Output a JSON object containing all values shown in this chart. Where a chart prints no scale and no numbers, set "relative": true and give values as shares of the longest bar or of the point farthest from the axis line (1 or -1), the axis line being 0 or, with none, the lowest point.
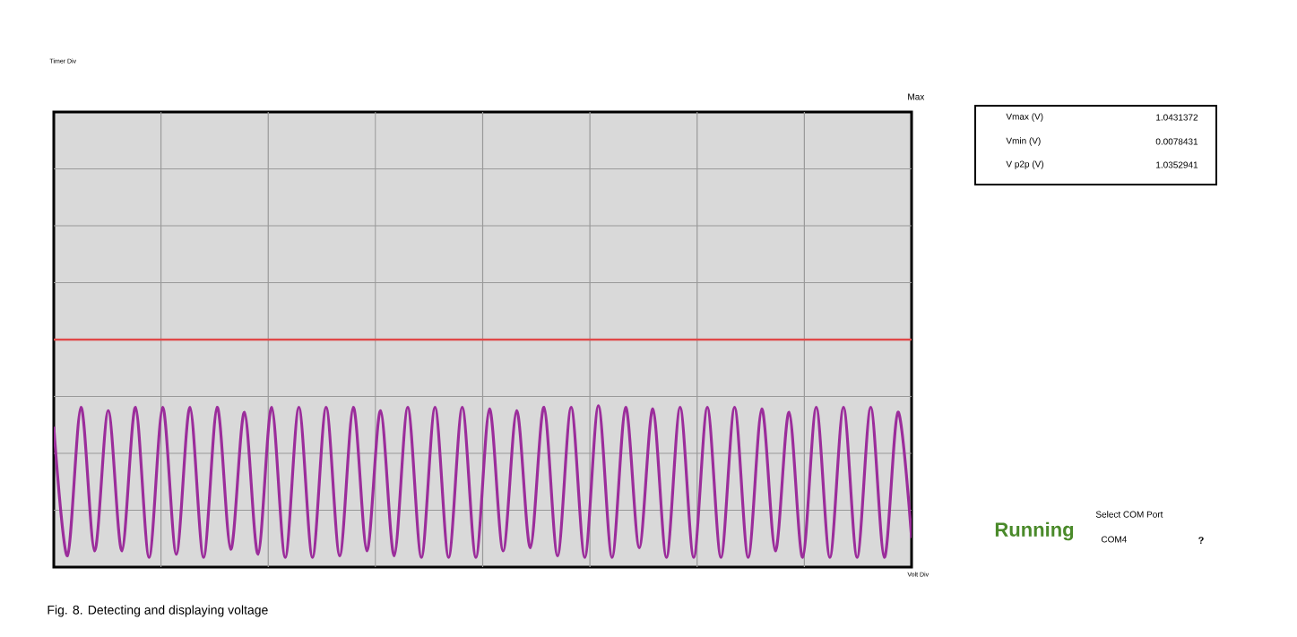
{
  "chart_data": {
    "type": "line",
    "relative": true,
    "marker": "none",
    "grid": true,
    "categories": [
      null,
      null,
      null,
      null,
      null,
      null,
      null,
      null,
      null,
      null,
      null,
      null,
      null,
      null,
      null,
      null,
      null,
      null,
      null,
      null,
      null,
      null,
      null,
      null,
      null,
      null,
      null,
      null,
      null,
      null,
      null,
      null,
      null,
      null,
      null,
      null,
      null,
      null,
      null,
      null,
      null,
      null,
      null,
      null,
      null,
      null,
      null,
      null,
      null,
      null,
      null,
      null,
      null,
      null,
      null,
      null,
      null,
      null,
      null,
      null,
      null,
      null,
      null,
      null
    ],
    "series": [
      {
        "color": "#9b2d9b",
        "values": [
          0.87,
          0.07,
          0.99,
          0.1,
          0.97,
          0.1,
          0.99,
          0.06,
          0.99,
          0.08,
          0.99,
          0.06,
          0.99,
          0.11,
          0.96,
          0.08,
          0.99,
          0.06,
          0.99,
          0.06,
          0.99,
          0.07,
          0.99,
          0.1,
          0.97,
          0.07,
          0.99,
          0.06,
          0.99,
          0.06,
          0.99,
          0.06,
          0.98,
          0.1,
          0.97,
          0.12,
          0.99,
          0.07,
          0.99,
          0.06,
          1.0,
          0.06,
          0.99,
          0.12,
          0.98,
          0.06,
          0.99,
          0.06,
          0.99,
          0.06,
          0.99,
          0.06,
          0.98,
          0.1,
          0.96,
          0.06,
          0.99,
          0.06,
          0.99,
          0.06,
          0.99,
          0.06,
          0.96,
          0.18
        ]
      }
    ],
    "ref_lines": [
      {
        "axis": "y",
        "value": 1.41,
        "color": "#e04848"
      }
    ],
    "annotations": [
      "Timer Div",
      "Max",
      "Vmax (V)",
      "1.0431372",
      "Vmin (V)",
      "0.0078431",
      "V p2p (V)",
      "1.0352941",
      "Running",
      "Select COM Port",
      "COM4",
      "?",
      "Volt Div",
      "Fig. 8. Detecting and displaying voltage"
    ]
  }
}
